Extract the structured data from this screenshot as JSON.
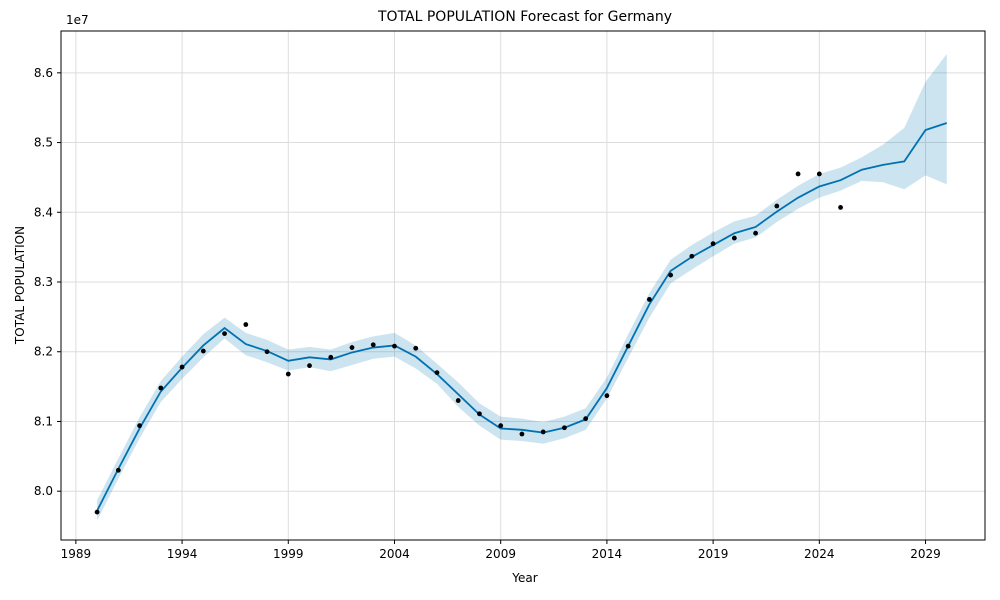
{
  "chart_data": {
    "type": "line",
    "title": "TOTAL POPULATION Forecast for Germany",
    "xlabel": "Year",
    "ylabel": "TOTAL POPULATION",
    "y_offset_label": "1e7",
    "xlim": [
      1988.3,
      2031.8
    ],
    "ylim": [
      7.93,
      8.66
    ],
    "x_ticks": [
      1989,
      1994,
      1999,
      2004,
      2009,
      2014,
      2019,
      2024,
      2029
    ],
    "y_ticks": [
      8.0,
      8.1,
      8.2,
      8.3,
      8.4,
      8.5,
      8.6
    ],
    "y_tick_labels": [
      "8.0",
      "8.1",
      "8.2",
      "8.3",
      "8.4",
      "8.5",
      "8.6"
    ],
    "grid": true,
    "colors": {
      "forecast": "#0072B2",
      "band": "#0072B2",
      "observed": "#000000"
    },
    "observed": {
      "x": [
        1990,
        1991,
        1992,
        1993,
        1994,
        1995,
        1996,
        1997,
        1998,
        1999,
        2000,
        2001,
        2002,
        2003,
        2004,
        2005,
        2006,
        2007,
        2008,
        2009,
        2010,
        2011,
        2012,
        2013,
        2014,
        2015,
        2016,
        2017,
        2018,
        2019,
        2020,
        2021,
        2022,
        2023,
        2024,
        2025
      ],
      "y": [
        7.97,
        8.03,
        8.094,
        8.148,
        8.178,
        8.201,
        8.226,
        8.239,
        8.2,
        8.168,
        8.18,
        8.192,
        8.206,
        8.21,
        8.208,
        8.205,
        8.17,
        8.13,
        8.111,
        8.094,
        8.082,
        8.085,
        8.091,
        8.104,
        8.137,
        8.208,
        8.275,
        8.31,
        8.337,
        8.355,
        8.363,
        8.37,
        8.409,
        8.455,
        8.455,
        8.407
      ]
    },
    "forecast": {
      "x": [
        1990,
        1991,
        1992,
        1993,
        1994,
        1995,
        1996,
        1997,
        1998,
        1999,
        2000,
        2001,
        2002,
        2003,
        2004,
        2005,
        2006,
        2007,
        2008,
        2009,
        2010,
        2011,
        2012,
        2013,
        2014,
        2015,
        2016,
        2017,
        2018,
        2019,
        2020,
        2021,
        2022,
        2023,
        2024,
        2025,
        2026,
        2027,
        2028,
        2029,
        2030
      ],
      "yhat": [
        7.972,
        8.032,
        8.09,
        8.143,
        8.177,
        8.209,
        8.234,
        8.211,
        8.201,
        8.187,
        8.192,
        8.189,
        8.199,
        8.206,
        8.209,
        8.193,
        8.168,
        8.139,
        8.11,
        8.09,
        8.088,
        8.084,
        8.091,
        8.103,
        8.148,
        8.208,
        8.268,
        8.316,
        8.336,
        8.353,
        8.37,
        8.379,
        8.401,
        8.421,
        8.437,
        8.446,
        8.461,
        8.468,
        8.473,
        8.518,
        8.528
      ],
      "yhat_lower": [
        7.958,
        8.018,
        8.076,
        8.128,
        8.161,
        8.192,
        8.219,
        8.195,
        8.185,
        8.173,
        8.178,
        8.172,
        8.181,
        8.19,
        8.193,
        8.176,
        8.154,
        8.121,
        8.094,
        8.074,
        8.072,
        8.068,
        8.076,
        8.088,
        8.133,
        8.191,
        8.249,
        8.298,
        8.318,
        8.337,
        8.355,
        8.364,
        8.386,
        8.405,
        8.421,
        8.431,
        8.445,
        8.443,
        8.433,
        8.453,
        8.44
      ],
      "yhat_upper": [
        7.987,
        8.047,
        8.106,
        8.158,
        8.193,
        8.225,
        8.249,
        8.227,
        8.217,
        8.203,
        8.207,
        8.203,
        8.214,
        8.222,
        8.227,
        8.209,
        8.183,
        8.156,
        8.126,
        8.107,
        8.104,
        8.099,
        8.107,
        8.119,
        8.163,
        8.225,
        8.284,
        8.332,
        8.353,
        8.371,
        8.387,
        8.395,
        8.418,
        8.438,
        8.455,
        8.464,
        8.479,
        8.497,
        8.521,
        8.587,
        8.627
      ]
    }
  }
}
